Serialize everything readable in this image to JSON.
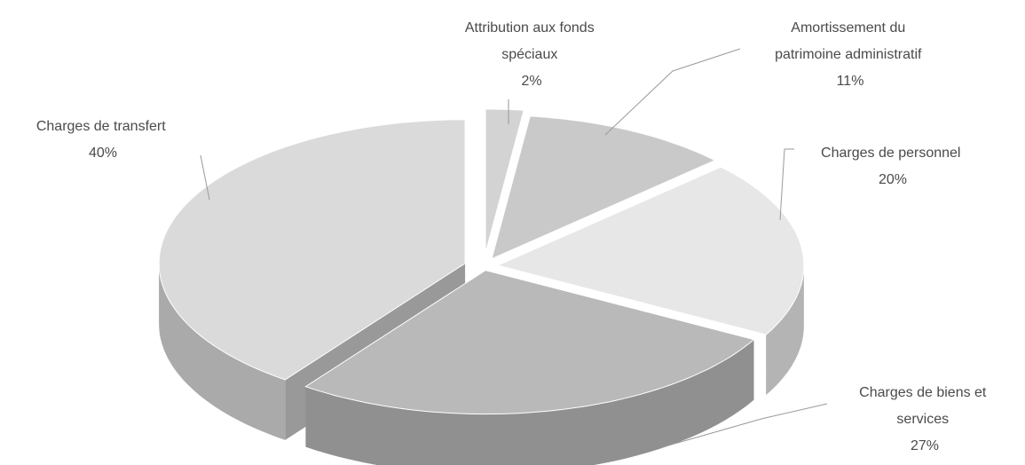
{
  "chart_data": {
    "type": "pie",
    "style": "3d-exploded",
    "slices": [
      {
        "label_lines": [
          "Attribution aux fonds",
          "spéciaux"
        ],
        "value": 2,
        "value_label": "2%",
        "color": "#d3d3d3"
      },
      {
        "label_lines": [
          "Amortissement du",
          "patrimoine administratif"
        ],
        "value": 11,
        "value_label": "11%",
        "color": "#c9c9c9"
      },
      {
        "label_lines": [
          "Charges de personnel"
        ],
        "value": 20,
        "value_label": "20%",
        "color": "#e7e7e7"
      },
      {
        "label_lines": [
          "Charges de biens et",
          "services"
        ],
        "value": 27,
        "value_label": "27%",
        "color": "#b9b9b9"
      },
      {
        "label_lines": [
          "Charges de transfert"
        ],
        "value": 40,
        "value_label": "40%",
        "color": "#dadada"
      }
    ]
  }
}
